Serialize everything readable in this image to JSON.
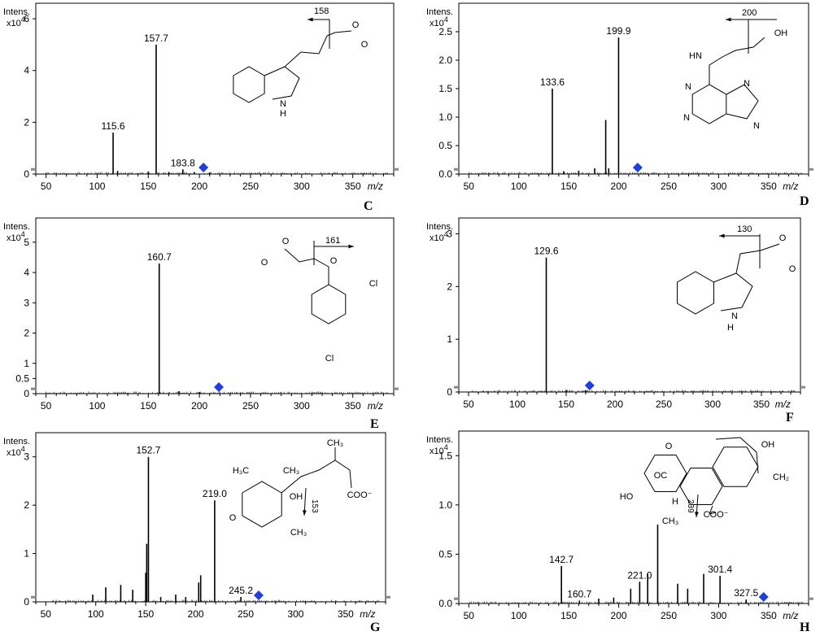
{
  "chart_data": [
    {
      "id": "C",
      "type": "bar",
      "panel_letter": "C",
      "intens_label": "Intens.",
      "scale_label": "x10",
      "scale_exp": "4",
      "xlabel": "m/z",
      "xlim": [
        40,
        390
      ],
      "ylim": [
        0,
        6.6
      ],
      "xticks": [
        50,
        100,
        150,
        200,
        250,
        300,
        350
      ],
      "yticks": [
        0,
        2,
        4,
        6
      ],
      "peaks": [
        [
          115.6,
          1.6
        ],
        [
          157.7,
          5.0
        ],
        [
          183.8,
          0.18
        ],
        [
          120,
          0.12
        ],
        [
          150,
          0.1
        ],
        [
          170,
          0.08
        ],
        [
          195,
          0.08
        ],
        [
          210,
          0.06
        ]
      ],
      "peak_labels": [
        [
          115.6,
          1.6,
          "115.6"
        ],
        [
          157.7,
          5.0,
          "157.7"
        ],
        [
          183.8,
          0.18,
          "183.8"
        ]
      ],
      "precursor_mz": 204,
      "fragment_annotation": "158",
      "structure_labels": [
        "O",
        "O",
        "N",
        "H"
      ]
    },
    {
      "id": "D",
      "type": "bar",
      "panel_letter": "D",
      "intens_label": "Intens.",
      "scale_label": "x10",
      "scale_exp": "4",
      "xlabel": "m/z",
      "xlim": [
        40,
        390
      ],
      "ylim": [
        0,
        3.0
      ],
      "xticks": [
        50,
        100,
        150,
        200,
        250,
        300,
        350
      ],
      "yticks": [
        0.0,
        0.5,
        1.0,
        1.5,
        2.0,
        2.5
      ],
      "ytick_labels": [
        "0.0",
        "0.5",
        "1.0",
        "1.5",
        "2.0",
        "2.5"
      ],
      "peaks": [
        [
          133.6,
          1.5
        ],
        [
          187.0,
          0.95
        ],
        [
          199.9,
          2.4
        ],
        [
          176,
          0.1
        ],
        [
          190,
          0.1
        ],
        [
          160,
          0.06
        ],
        [
          145,
          0.05
        ]
      ],
      "peak_labels": [
        [
          133.6,
          1.5,
          "133.6"
        ],
        [
          199.9,
          2.4,
          "199.9"
        ]
      ],
      "precursor_mz": 219,
      "fragment_annotation": "200",
      "structure_labels": [
        "OH",
        "HN",
        "N",
        "N",
        "N",
        "N"
      ]
    },
    {
      "id": "E",
      "type": "bar",
      "panel_letter": "E",
      "intens_label": "Intens.",
      "scale_label": "x10",
      "scale_exp": "4",
      "xlabel": "m/z",
      "xlim": [
        40,
        390
      ],
      "ylim": [
        0,
        5.8
      ],
      "xticks": [
        50,
        100,
        150,
        200,
        250,
        300,
        350
      ],
      "yticks": [
        0,
        1,
        2,
        3,
        4,
        5
      ],
      "yticks_extra": [
        0.5
      ],
      "ytick_labels": [
        "0",
        "1",
        "2",
        "3",
        "4",
        "5"
      ],
      "peaks": [
        [
          160.7,
          4.3
        ],
        [
          180,
          0.08
        ],
        [
          200,
          0.05
        ]
      ],
      "peak_labels": [
        [
          160.7,
          4.3,
          "160.7"
        ]
      ],
      "precursor_mz": 219,
      "fragment_annotation": "161",
      "structure_labels": [
        "O",
        "O",
        "O",
        "Cl",
        "Cl"
      ]
    },
    {
      "id": "F",
      "type": "bar",
      "panel_letter": "F",
      "intens_label": "Intens.",
      "scale_label": "x10",
      "scale_exp": "4",
      "xlabel": "m/z",
      "xlim": [
        40,
        390
      ],
      "ylim": [
        0,
        3.3
      ],
      "xticks": [
        50,
        100,
        150,
        200,
        250,
        300,
        350
      ],
      "yticks": [
        0,
        1,
        2,
        3
      ],
      "peaks": [
        [
          129.6,
          2.55
        ],
        [
          150,
          0.04
        ],
        [
          170,
          0.03
        ]
      ],
      "peak_labels": [
        [
          129.6,
          2.55,
          "129.6"
        ]
      ],
      "precursor_mz": 174,
      "fragment_annotation": "130",
      "structure_labels": [
        "O",
        "O",
        "N",
        "H"
      ]
    },
    {
      "id": "G",
      "type": "bar",
      "panel_letter": "G",
      "intens_label": "Intens.",
      "scale_label": "x10",
      "scale_exp": "4",
      "xlabel": "m/z",
      "xlim": [
        40,
        390
      ],
      "ylim": [
        0,
        3.5
      ],
      "xticks": [
        50,
        100,
        150,
        200,
        250,
        300,
        350
      ],
      "yticks": [
        0,
        1,
        2,
        3
      ],
      "peaks": [
        [
          152.7,
          3.0
        ],
        [
          151.0,
          1.2
        ],
        [
          150.0,
          0.6
        ],
        [
          219.0,
          2.1
        ],
        [
          205.0,
          0.55
        ],
        [
          203.0,
          0.4
        ],
        [
          245.2,
          0.1
        ],
        [
          125,
          0.35
        ],
        [
          110,
          0.3
        ],
        [
          137,
          0.25
        ],
        [
          97,
          0.15
        ],
        [
          180,
          0.15
        ],
        [
          190,
          0.1
        ],
        [
          165,
          0.1
        ]
      ],
      "peak_labels": [
        [
          152.7,
          3.0,
          "152.7"
        ],
        [
          219.0,
          2.1,
          "219.0"
        ],
        [
          245.2,
          0.1,
          "245.2"
        ]
      ],
      "precursor_mz": 263,
      "fragment_annotation": "153",
      "structure_labels": [
        "H₃C",
        "CH₃",
        "OH",
        "O",
        "CH₃",
        "COO⁻",
        "CH₃"
      ]
    },
    {
      "id": "H",
      "type": "bar",
      "panel_letter": "H",
      "intens_label": "Intens.",
      "scale_label": "x10",
      "scale_exp": "4",
      "xlabel": "m/z",
      "xlim": [
        40,
        390
      ],
      "ylim": [
        0,
        1.75
      ],
      "xticks": [
        50,
        100,
        150,
        200,
        250,
        300,
        350
      ],
      "yticks": [
        0.0,
        0.5,
        1.0,
        1.5
      ],
      "ytick_labels": [
        "0.0",
        "0.5",
        "1.0",
        "1.5"
      ],
      "peaks": [
        [
          142.7,
          0.38
        ],
        [
          160.7,
          0.03
        ],
        [
          221.0,
          0.22
        ],
        [
          239.0,
          0.8
        ],
        [
          229.0,
          0.3
        ],
        [
          212.0,
          0.15
        ],
        [
          259.0,
          0.2
        ],
        [
          269.0,
          0.15
        ],
        [
          285.0,
          0.3
        ],
        [
          301.4,
          0.28
        ],
        [
          327.5,
          0.04
        ],
        [
          180,
          0.05
        ],
        [
          195,
          0.06
        ]
      ],
      "peak_labels": [
        [
          142.7,
          0.38,
          "142.7"
        ],
        [
          160.7,
          0.03,
          "160.7"
        ],
        [
          221.0,
          0.22,
          "221.0"
        ],
        [
          301.4,
          0.28,
          "301.4"
        ],
        [
          327.5,
          0.04,
          "327.5"
        ]
      ],
      "precursor_mz": 345,
      "fragment_annotation": "239",
      "structure_labels": [
        "O",
        "OC",
        "H",
        "OH",
        "CH₂",
        "HO",
        "CH₃",
        "COO⁻"
      ]
    }
  ]
}
